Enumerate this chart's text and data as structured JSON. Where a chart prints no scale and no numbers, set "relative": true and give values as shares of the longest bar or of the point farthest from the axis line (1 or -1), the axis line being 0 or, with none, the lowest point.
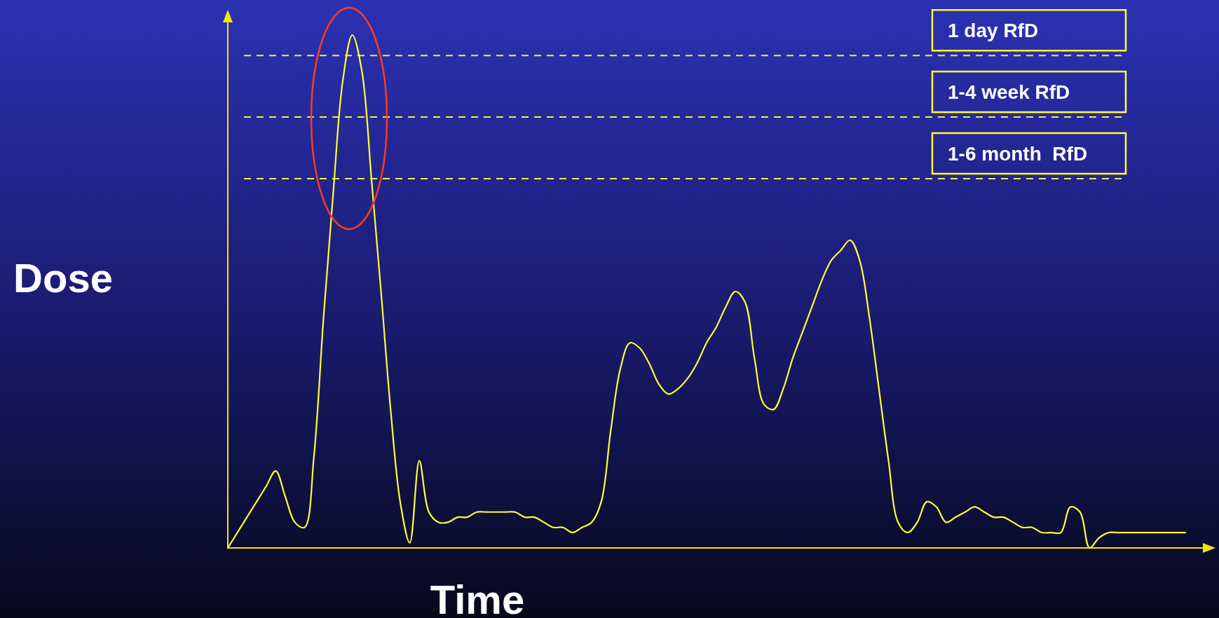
{
  "chart_data": {
    "type": "line",
    "relative": true,
    "xlabel": "Time",
    "ylabel": "Dose",
    "grid": false,
    "line_style": "solid",
    "categories": [
      null,
      null,
      null,
      null,
      null,
      null,
      null,
      null,
      null,
      null,
      null,
      null,
      null,
      null,
      null,
      null,
      null,
      null,
      null,
      null,
      null,
      null,
      null,
      null,
      null,
      null,
      null,
      null,
      null,
      null,
      null,
      null,
      null,
      null,
      null,
      null,
      null,
      null,
      null,
      null,
      null,
      null,
      null,
      null,
      null,
      null,
      null,
      null,
      null,
      null,
      null,
      null,
      null,
      null,
      null,
      null,
      null,
      null,
      null,
      null,
      null,
      null,
      null,
      null,
      null,
      null,
      null,
      null,
      null,
      null,
      null,
      null,
      null,
      null,
      null,
      null,
      null,
      null,
      null,
      null,
      null,
      null,
      null,
      null,
      null,
      null,
      null,
      null,
      null,
      null,
      null,
      null,
      null,
      null,
      null,
      null,
      null,
      null,
      null,
      null,
      null
    ],
    "series": [
      {
        "color": "#ffff33",
        "values": [
          0,
          0.03,
          0.06,
          0.09,
          0.12,
          0.15,
          0.1,
          0.05,
          0.04,
          0.18,
          0.45,
          0.69,
          0.91,
          1,
          0.93,
          0.72,
          0.5,
          0.27,
          0.09,
          0.01,
          0.17,
          0.07,
          0.05,
          0.05,
          0.06,
          0.06,
          0.07,
          0.07,
          0.07,
          0.07,
          0.07,
          0.06,
          0.06,
          0.05,
          0.04,
          0.04,
          0.03,
          0.04,
          0.05,
          0.09,
          0.23,
          0.35,
          0.4,
          0.39,
          0.36,
          0.32,
          0.3,
          0.31,
          0.33,
          0.36,
          0.4,
          0.43,
          0.47,
          0.5,
          0.48,
          0.37,
          0.28,
          0.27,
          0.31,
          0.37,
          0.42,
          0.47,
          0.52,
          0.56,
          0.58,
          0.6,
          0.56,
          0.45,
          0.31,
          0.17,
          0.05,
          0.03,
          0.05,
          0.09,
          0.08,
          0.05,
          0.06,
          0.07,
          0.08,
          0.07,
          0.06,
          0.06,
          0.05,
          0.04,
          0.04,
          0.03,
          0.03,
          0.03,
          0.08,
          0.07,
          0,
          0.02,
          0.03,
          0.03,
          0.03,
          0.03,
          0.03,
          0.03,
          0.03,
          0.03,
          0.03
        ]
      }
    ],
    "ref_lines": [
      {
        "axis": "y",
        "value": 0.96,
        "label": "1 day RfD",
        "color": "#f0f050",
        "line_style": "dashed"
      },
      {
        "axis": "y",
        "value": 0.84,
        "label": "1-4 week RfD",
        "color": "#f0f050",
        "line_style": "dashed"
      },
      {
        "axis": "y",
        "value": 0.72,
        "label": "1-6 month  RfD",
        "color": "#f0f050",
        "line_style": "dashed"
      }
    ]
  }
}
